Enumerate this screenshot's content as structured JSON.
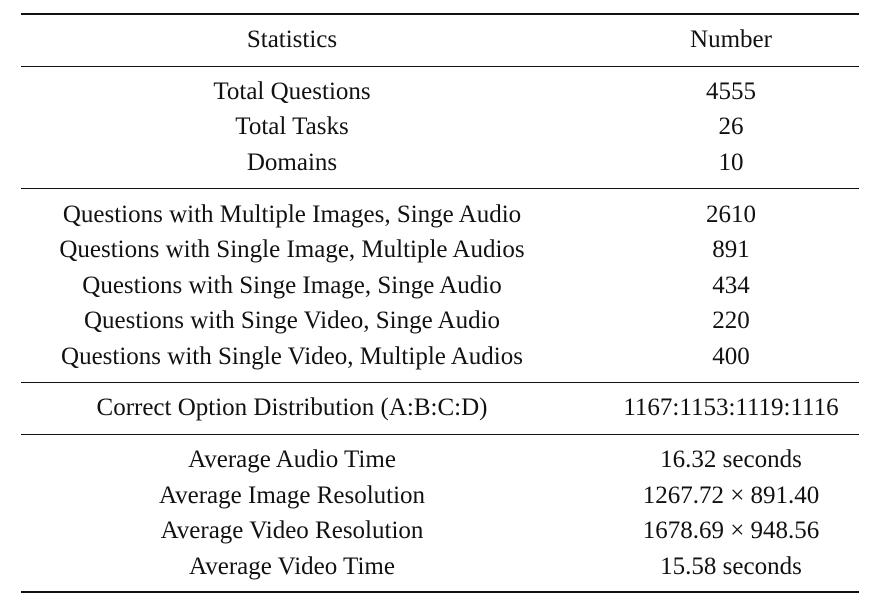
{
  "table": {
    "header": {
      "statistics": "Statistics",
      "number": "Number"
    },
    "groups": [
      {
        "rows": [
          {
            "label": "Total Questions",
            "value": "4555"
          },
          {
            "label": "Total Tasks",
            "value": "26"
          },
          {
            "label": "Domains",
            "value": "10"
          }
        ]
      },
      {
        "rows": [
          {
            "label": "Questions with Multiple Images, Singe Audio",
            "value": "2610"
          },
          {
            "label": "Questions with Single Image, Multiple Audios",
            "value": "891"
          },
          {
            "label": "Questions with Singe Image, Singe Audio",
            "value": "434"
          },
          {
            "label": "Questions with Singe Video, Singe Audio",
            "value": "220"
          },
          {
            "label": "Questions with Single Video, Multiple Audios",
            "value": "400"
          }
        ]
      },
      {
        "rows": [
          {
            "label": "Correct Option Distribution (A:B:C:D)",
            "value": "1167:1153:1119:1116"
          }
        ]
      },
      {
        "rows": [
          {
            "label": "Average Audio Time",
            "value": "16.32 seconds"
          },
          {
            "label": "Average Image Resolution",
            "value": "1267.72 × 891.40"
          },
          {
            "label": "Average Video Resolution",
            "value": "1678.69 × 948.56"
          },
          {
            "label": "Average Video Time",
            "value": "15.58 seconds"
          }
        ]
      }
    ]
  }
}
